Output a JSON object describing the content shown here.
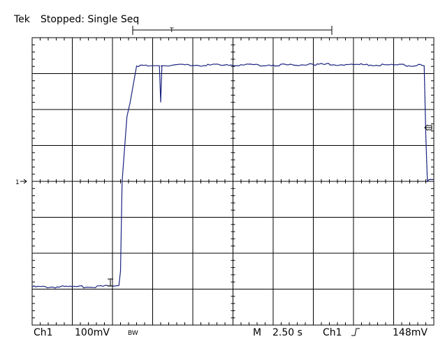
{
  "header": {
    "brand": "Tek",
    "status": "Stopped: Single Seq"
  },
  "footer": {
    "channel": "Ch1",
    "volts_per_div": "100mV",
    "bw_flag": "BW",
    "mode": "M",
    "time_per_div": "2.50 s",
    "trigger_source": "Ch1",
    "trigger_level": "148mV"
  },
  "markers": {
    "channel_ground": "1",
    "trigger_position": "T",
    "trigger_level_arrow": "left-arrow-icon"
  },
  "chart_data": {
    "type": "line",
    "x_divisions": 10,
    "y_divisions": 8,
    "xlim": [
      0,
      25
    ],
    "ylim": [
      -0.4,
      0.4
    ],
    "grid": true,
    "series": [
      {
        "color": "#1a237e",
        "x": [
          0,
          2.5,
          5.0,
          5.4,
          5.5,
          5.6,
          5.9,
          6.1,
          6.5,
          7.2,
          7.5,
          8.0,
          8.2,
          8.5,
          8.8,
          9.0,
          10.0,
          12.0,
          13.0,
          15.0,
          17.5,
          20.0,
          22.5,
          24.4,
          24.5,
          24.6,
          24.7,
          25.0
        ],
        "y": [
          -0.294,
          -0.294,
          -0.292,
          -0.29,
          -0.25,
          0.0,
          0.18,
          0.22,
          0.321,
          0.321,
          0.322,
          0.321,
          0.322,
          0.321,
          0.324,
          0.325,
          0.323,
          0.324,
          0.325,
          0.324,
          0.325,
          0.325,
          0.324,
          0.322,
          0.13,
          0.0,
          0.005,
          0.005
        ]
      }
    ],
    "spike": {
      "x": 8.0,
      "y": 0.22
    }
  }
}
